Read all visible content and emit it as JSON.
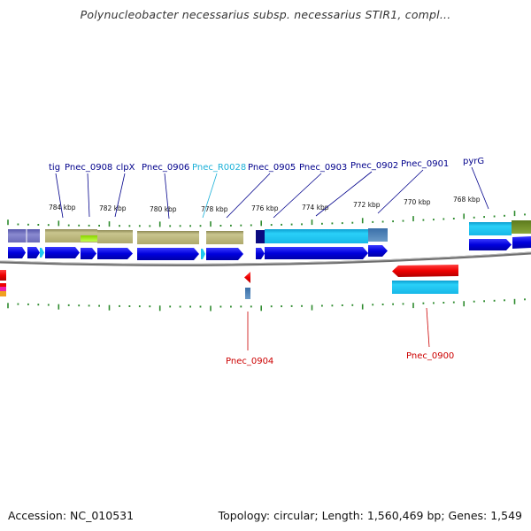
{
  "title": "Polynucleobacter necessarius subsp. necessarius STIR1, compl...",
  "footer": {
    "accession": "Accession: NC_010531",
    "summary": "Topology: circular; Length: 1,560,469 bp; Genes: 1,549"
  },
  "scale_labels": [
    "784 kbp",
    "782 kbp",
    "780 kbp",
    "778 kbp",
    "776 kbp",
    "774 kbp",
    "772 kbp",
    "770 kbp",
    "768 kbp"
  ],
  "top_gene_labels": [
    {
      "text": "tig",
      "color": "#00008b"
    },
    {
      "text": "Pnec_0908",
      "color": "#00008b"
    },
    {
      "text": "clpX",
      "color": "#00008b"
    },
    {
      "text": "Pnec_0906",
      "color": "#00008b"
    },
    {
      "text": "Pnec_R0028",
      "color": "#1ab0d8"
    },
    {
      "text": "Pnec_0905",
      "color": "#00008b"
    },
    {
      "text": "Pnec_0903",
      "color": "#00008b"
    },
    {
      "text": "Pnec_0902",
      "color": "#00008b"
    },
    {
      "text": "Pnec_0901",
      "color": "#00008b"
    },
    {
      "text": "pyrG",
      "color": "#00008b"
    }
  ],
  "bottom_gene_labels": [
    {
      "text": "Pnec_0904",
      "color": "#cc0000"
    },
    {
      "text": "Pnec_0900",
      "color": "#cc0000"
    }
  ],
  "colors": {
    "forward_gene": "#0000dd",
    "reverse_gene": "#ee0000",
    "cog_khaki": "#b8b47a",
    "cyan": "#1ec8f0",
    "tick": "#2e8b2e",
    "backbone": "#777777"
  }
}
